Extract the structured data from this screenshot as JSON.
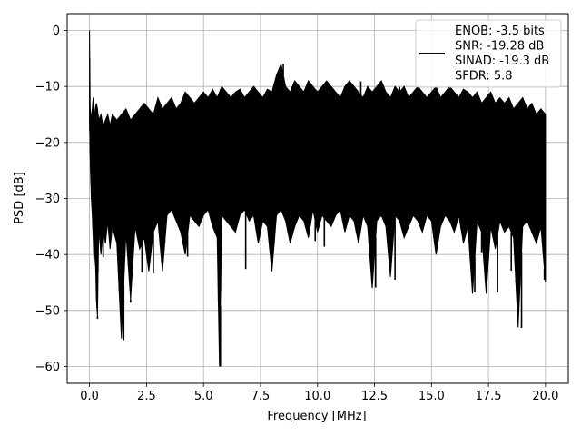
{
  "chart_data": {
    "type": "line",
    "title": "",
    "xlabel": "Frequency [MHz]",
    "ylabel": "PSD [dB]",
    "xlim": [
      -0.98,
      21.0
    ],
    "ylim": [
      -63.0,
      3.0
    ],
    "xticks": [
      0.0,
      2.5,
      5.0,
      7.5,
      10.0,
      12.5,
      15.0,
      17.5,
      20.0
    ],
    "xtick_labels": [
      "0.0",
      "2.5",
      "5.0",
      "7.5",
      "10.0",
      "12.5",
      "15.0",
      "17.5",
      "20.0"
    ],
    "yticks": [
      0,
      -10,
      -20,
      -30,
      -40,
      -50,
      -60
    ],
    "ytick_labels": [
      "0",
      "−10",
      "−20",
      "−30",
      "−40",
      "−50",
      "−60"
    ],
    "grid": true,
    "legend_position": "top-right",
    "series": [
      {
        "name": "ENOB: -3.5 bits\nSNR: -19.28 dB\nSINAD: -19.3 dB\nSFDR: 5.8",
        "color": "#000000",
        "x": [
          0.0,
          0.02,
          0.04,
          0.08,
          0.12,
          0.16,
          0.2,
          0.25,
          0.3,
          0.35,
          0.4,
          0.5,
          0.6,
          0.7,
          0.8,
          0.9,
          1.0,
          1.2,
          1.4,
          1.6,
          1.8,
          2.0,
          2.2,
          2.4,
          2.6,
          2.8,
          3.0,
          3.2,
          3.4,
          3.6,
          3.8,
          4.0,
          4.2,
          4.4,
          4.6,
          4.8,
          5.0,
          5.2,
          5.4,
          5.6,
          5.7,
          5.8,
          6.0,
          6.2,
          6.4,
          6.6,
          6.8,
          7.0,
          7.2,
          7.4,
          7.6,
          7.8,
          8.0,
          8.2,
          8.4,
          8.6,
          8.8,
          9.0,
          9.2,
          9.4,
          9.6,
          9.8,
          10.0,
          10.2,
          10.4,
          10.6,
          10.8,
          11.0,
          11.2,
          11.4,
          11.6,
          11.8,
          12.0,
          12.2,
          12.4,
          12.6,
          12.8,
          13.0,
          13.2,
          13.4,
          13.6,
          13.8,
          14.0,
          14.2,
          14.4,
          14.6,
          14.8,
          15.0,
          15.2,
          15.4,
          15.6,
          15.8,
          16.0,
          16.2,
          16.4,
          16.6,
          16.8,
          17.0,
          17.2,
          17.4,
          17.6,
          17.8,
          18.0,
          18.2,
          18.4,
          18.6,
          18.8,
          19.0,
          19.2,
          19.4,
          19.6,
          19.8,
          20.0
        ],
        "upper": [
          0.0,
          -10.0,
          -18.0,
          -15.0,
          -14.0,
          -12.0,
          -16.0,
          -14.0,
          -13.0,
          -14.0,
          -16.0,
          -15.0,
          -17.0,
          -16.0,
          -15.0,
          -17.0,
          -15.0,
          -16.0,
          -15.0,
          -14.0,
          -16.0,
          -15.0,
          -14.0,
          -13.0,
          -14.0,
          -15.0,
          -12.0,
          -14.0,
          -13.0,
          -12.0,
          -14.0,
          -13.0,
          -11.0,
          -12.0,
          -13.0,
          -12.0,
          -11.0,
          -12.0,
          -10.5,
          -12.0,
          -11.0,
          -10.0,
          -11.0,
          -12.0,
          -11.0,
          -10.5,
          -12.0,
          -11.0,
          -10.0,
          -11.0,
          -12.0,
          -10.5,
          -11.0,
          -8.0,
          -6.0,
          -10.0,
          -11.0,
          -9.0,
          -10.0,
          -11.0,
          -9.0,
          -10.0,
          -11.0,
          -10.0,
          -9.0,
          -10.0,
          -11.0,
          -12.0,
          -10.0,
          -9.0,
          -10.0,
          -11.0,
          -12.0,
          -10.0,
          -11.0,
          -10.0,
          -9.0,
          -11.0,
          -12.0,
          -10.0,
          -11.0,
          -10.0,
          -12.0,
          -11.0,
          -10.0,
          -11.0,
          -12.0,
          -11.0,
          -10.0,
          -12.0,
          -11.0,
          -10.0,
          -11.0,
          -12.0,
          -10.5,
          -11.0,
          -12.0,
          -11.0,
          -13.0,
          -12.0,
          -11.0,
          -13.0,
          -12.0,
          -13.0,
          -12.0,
          -14.0,
          -13.0,
          -12.0,
          -14.0,
          -13.0,
          -15.0,
          -14.0,
          -15.0
        ],
        "lower": [
          -16.0,
          -20.0,
          -25.0,
          -30.0,
          -33.0,
          -37.0,
          -42.0,
          -38.0,
          -48.0,
          -51.0,
          -35.0,
          -40.0,
          -36.0,
          -38.0,
          -34.0,
          -39.0,
          -35.0,
          -38.0,
          -55.0,
          -36.0,
          -48.0,
          -35.0,
          -39.0,
          -37.0,
          -43.0,
          -36.0,
          -34.0,
          -43.0,
          -33.0,
          -32.0,
          -34.0,
          -36.0,
          -40.0,
          -33.0,
          -34.0,
          -35.0,
          -33.0,
          -32.0,
          -35.0,
          -37.0,
          -60.0,
          -33.0,
          -34.0,
          -35.0,
          -36.0,
          -33.0,
          -32.0,
          -34.0,
          -33.0,
          -38.0,
          -34.0,
          -35.0,
          -43.0,
          -33.0,
          -32.0,
          -34.0,
          -38.0,
          -35.0,
          -33.0,
          -34.0,
          -37.0,
          -32.0,
          -36.0,
          -33.0,
          -34.0,
          -35.0,
          -33.0,
          -32.0,
          -36.0,
          -33.0,
          -34.0,
          -38.0,
          -33.0,
          -35.0,
          -46.0,
          -34.0,
          -33.0,
          -35.0,
          -44.0,
          -33.0,
          -34.0,
          -37.0,
          -35.0,
          -33.0,
          -34.0,
          -36.0,
          -33.0,
          -34.0,
          -40.0,
          -35.0,
          -33.0,
          -34.0,
          -36.0,
          -33.0,
          -38.0,
          -35.0,
          -47.0,
          -34.0,
          -36.0,
          -47.0,
          -35.0,
          -39.0,
          -34.0,
          -36.0,
          -35.0,
          -37.0,
          -53.0,
          -35.0,
          -34.0,
          -36.0,
          -38.0,
          -35.0,
          -45.0
        ],
        "peaks": [
          [
            0.0,
            0.0
          ],
          [
            0.35,
            -51.5
          ],
          [
            0.6,
            -40.5
          ],
          [
            1.5,
            -55.3
          ],
          [
            1.8,
            -48.6
          ],
          [
            2.3,
            -43.2
          ],
          [
            2.8,
            -43.4
          ],
          [
            4.3,
            -40.4
          ],
          [
            5.74,
            -60.0
          ],
          [
            6.85,
            -42.6
          ],
          [
            7.97,
            -43.0
          ],
          [
            8.5,
            -6.0
          ],
          [
            9.9,
            -37.6
          ],
          [
            10.3,
            -38.6
          ],
          [
            12.55,
            -45.9
          ],
          [
            13.4,
            -44.5
          ],
          [
            16.9,
            -46.8
          ],
          [
            17.2,
            -39.6
          ],
          [
            17.9,
            -46.8
          ],
          [
            18.5,
            -42.9
          ],
          [
            18.95,
            -53.1
          ],
          [
            19.95,
            -44.5
          ],
          [
            5.75,
            -16.5
          ],
          [
            11.9,
            -9.1
          ],
          [
            13.6,
            -10.1
          ],
          [
            16.3,
            -11.5
          ]
        ]
      }
    ]
  }
}
